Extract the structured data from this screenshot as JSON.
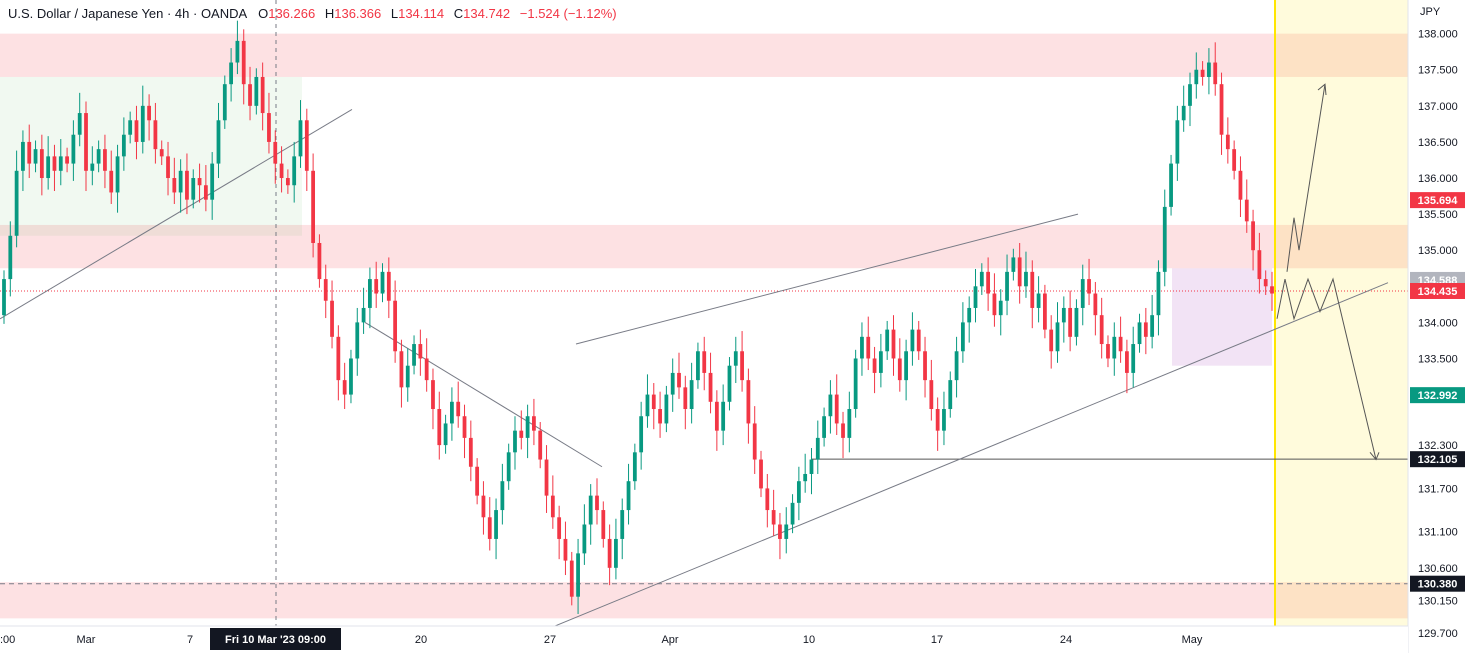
{
  "header": {
    "symbol_title": "U.S. Dollar / Japanese Yen · 4h · OANDA",
    "open_label": "O",
    "open_value": "136.266",
    "high_label": "H",
    "high_value": "136.366",
    "low_label": "L",
    "low_value": "134.114",
    "close_label": "C",
    "close_value": "134.742",
    "change_value": "−1.524 (−1.12%)"
  },
  "colors": {
    "up": "#089981",
    "down": "#f23645",
    "zone_red": "#f23645",
    "zone_green": "#4caf50",
    "zone_purple": "#9c27b0",
    "zone_yellow": "#ffeb3b",
    "trendline": "#787b86",
    "path": "#555555"
  },
  "chart_data": {
    "type": "candlestick",
    "title": "U.S. Dollar / Japanese Yen · 4h · OANDA",
    "currency_label": "JPY",
    "ylim": [
      129.6,
      138.3
    ],
    "y_ticks": [
      "138.000",
      "137.500",
      "137.000",
      "136.500",
      "136.000",
      "135.500",
      "135.000",
      "134.500",
      "134.000",
      "133.500",
      "132.300",
      "131.700",
      "131.100",
      "130.600",
      "130.150",
      "129.700"
    ],
    "x_ticks": [
      ":00",
      "Mar",
      "7",
      "20",
      "27",
      "Apr",
      "10",
      "17",
      "24",
      "May"
    ],
    "crosshair_date_label": "Fri 10 Mar '23  09:00",
    "price_tags": [
      {
        "value": 135.694,
        "label": "135.694",
        "color": "#f23645"
      },
      {
        "value": 134.588,
        "label": "134.588",
        "color": "#b2b5be"
      },
      {
        "value": 134.435,
        "label": "134.435",
        "color": "#f23645"
      },
      {
        "value": 132.992,
        "label": "132.992",
        "color": "#089981"
      },
      {
        "value": 132.105,
        "label": "132.105",
        "color": "#131722"
      },
      {
        "value": 130.38,
        "label": "130.380",
        "color": "#131722"
      }
    ],
    "candles": [
      [
        134.1,
        134.6
      ],
      [
        134.6,
        135.2
      ],
      [
        135.2,
        136.1
      ],
      [
        136.1,
        136.5
      ],
      [
        136.5,
        136.2
      ],
      [
        136.2,
        136.4
      ],
      [
        136.4,
        136.0
      ],
      [
        136.0,
        136.3
      ],
      [
        136.3,
        136.1
      ],
      [
        136.1,
        136.3
      ],
      [
        136.3,
        136.2
      ],
      [
        136.2,
        136.6
      ],
      [
        136.6,
        136.9
      ],
      [
        136.9,
        136.1
      ],
      [
        136.1,
        136.2
      ],
      [
        136.2,
        136.4
      ],
      [
        136.4,
        136.1
      ],
      [
        136.1,
        135.8
      ],
      [
        135.8,
        136.3
      ],
      [
        136.3,
        136.6
      ],
      [
        136.6,
        136.8
      ],
      [
        136.8,
        136.5
      ],
      [
        136.5,
        137.0
      ],
      [
        137.0,
        136.8
      ],
      [
        136.8,
        136.4
      ],
      [
        136.4,
        136.3
      ],
      [
        136.3,
        136.0
      ],
      [
        136.0,
        135.8
      ],
      [
        135.8,
        136.1
      ],
      [
        136.1,
        135.7
      ],
      [
        135.7,
        136.0
      ],
      [
        136.0,
        135.9
      ],
      [
        135.9,
        135.7
      ],
      [
        135.7,
        136.2
      ],
      [
        136.2,
        136.8
      ],
      [
        136.8,
        137.3
      ],
      [
        137.3,
        137.6
      ],
      [
        137.6,
        137.9
      ],
      [
        137.9,
        137.3
      ],
      [
        137.3,
        137.0
      ],
      [
        137.0,
        137.4
      ],
      [
        137.4,
        136.9
      ],
      [
        136.9,
        136.5
      ],
      [
        136.5,
        136.2
      ],
      [
        136.2,
        136.0
      ],
      [
        136.0,
        135.9
      ],
      [
        135.9,
        136.3
      ],
      [
        136.3,
        136.8
      ],
      [
        136.8,
        136.1
      ],
      [
        136.1,
        135.1
      ],
      [
        135.1,
        134.6
      ],
      [
        134.6,
        134.3
      ],
      [
        134.3,
        133.8
      ],
      [
        133.8,
        133.2
      ],
      [
        133.2,
        133.0
      ],
      [
        133.0,
        133.5
      ],
      [
        133.5,
        134.0
      ],
      [
        134.0,
        134.2
      ],
      [
        134.2,
        134.6
      ],
      [
        134.6,
        134.4
      ],
      [
        134.4,
        134.7
      ],
      [
        134.7,
        134.3
      ],
      [
        134.3,
        133.6
      ],
      [
        133.6,
        133.1
      ],
      [
        133.1,
        133.4
      ],
      [
        133.4,
        133.7
      ],
      [
        133.7,
        133.5
      ],
      [
        133.5,
        133.2
      ],
      [
        133.2,
        132.8
      ],
      [
        132.8,
        132.3
      ],
      [
        132.3,
        132.6
      ],
      [
        132.6,
        132.9
      ],
      [
        132.9,
        132.7
      ],
      [
        132.7,
        132.4
      ],
      [
        132.4,
        132.0
      ],
      [
        132.0,
        131.6
      ],
      [
        131.6,
        131.3
      ],
      [
        131.3,
        131.0
      ],
      [
        131.0,
        131.4
      ],
      [
        131.4,
        131.8
      ],
      [
        131.8,
        132.2
      ],
      [
        132.2,
        132.5
      ],
      [
        132.5,
        132.4
      ],
      [
        132.4,
        132.7
      ],
      [
        132.7,
        132.5
      ],
      [
        132.5,
        132.1
      ],
      [
        132.1,
        131.6
      ],
      [
        131.6,
        131.3
      ],
      [
        131.3,
        131.0
      ],
      [
        131.0,
        130.7
      ],
      [
        130.7,
        130.2
      ],
      [
        130.2,
        130.8
      ],
      [
        130.8,
        131.2
      ],
      [
        131.2,
        131.6
      ],
      [
        131.6,
        131.4
      ],
      [
        131.4,
        131.0
      ],
      [
        131.0,
        130.6
      ],
      [
        130.6,
        131.0
      ],
      [
        131.0,
        131.4
      ],
      [
        131.4,
        131.8
      ],
      [
        131.8,
        132.2
      ],
      [
        132.2,
        132.7
      ],
      [
        132.7,
        133.0
      ],
      [
        133.0,
        132.8
      ],
      [
        132.8,
        132.6
      ],
      [
        132.6,
        133.0
      ],
      [
        133.0,
        133.3
      ],
      [
        133.3,
        133.1
      ],
      [
        133.1,
        132.8
      ],
      [
        132.8,
        133.2
      ],
      [
        133.2,
        133.6
      ],
      [
        133.6,
        133.3
      ],
      [
        133.3,
        132.9
      ],
      [
        132.9,
        132.5
      ],
      [
        132.5,
        132.9
      ],
      [
        132.9,
        133.4
      ],
      [
        133.4,
        133.6
      ],
      [
        133.6,
        133.2
      ],
      [
        133.2,
        132.6
      ],
      [
        132.6,
        132.1
      ],
      [
        132.1,
        131.7
      ],
      [
        131.7,
        131.4
      ],
      [
        131.4,
        131.2
      ],
      [
        131.2,
        131.0
      ],
      [
        131.0,
        131.2
      ],
      [
        131.2,
        131.5
      ],
      [
        131.5,
        131.8
      ],
      [
        131.8,
        131.9
      ],
      [
        131.9,
        132.1
      ],
      [
        132.1,
        132.4
      ],
      [
        132.4,
        132.7
      ],
      [
        132.7,
        133.0
      ],
      [
        133.0,
        132.6
      ],
      [
        132.6,
        132.4
      ],
      [
        132.4,
        132.8
      ],
      [
        132.8,
        133.5
      ],
      [
        133.5,
        133.8
      ],
      [
        133.8,
        133.5
      ],
      [
        133.5,
        133.3
      ],
      [
        133.3,
        133.6
      ],
      [
        133.6,
        133.9
      ],
      [
        133.9,
        133.5
      ],
      [
        133.5,
        133.2
      ],
      [
        133.2,
        133.6
      ],
      [
        133.6,
        133.9
      ],
      [
        133.9,
        133.6
      ],
      [
        133.6,
        133.2
      ],
      [
        133.2,
        132.8
      ],
      [
        132.8,
        132.5
      ],
      [
        132.5,
        132.8
      ],
      [
        132.8,
        133.2
      ],
      [
        133.2,
        133.6
      ],
      [
        133.6,
        134.0
      ],
      [
        134.0,
        134.2
      ],
      [
        134.2,
        134.5
      ],
      [
        134.5,
        134.7
      ],
      [
        134.7,
        134.4
      ],
      [
        134.4,
        134.1
      ],
      [
        134.1,
        134.3
      ],
      [
        134.3,
        134.7
      ],
      [
        134.7,
        134.9
      ],
      [
        134.9,
        134.5
      ],
      [
        134.5,
        134.7
      ],
      [
        134.7,
        134.2
      ],
      [
        134.2,
        134.4
      ],
      [
        134.4,
        133.9
      ],
      [
        133.9,
        133.6
      ],
      [
        133.6,
        134.0
      ],
      [
        134.0,
        134.2
      ],
      [
        134.2,
        133.8
      ],
      [
        133.8,
        134.2
      ],
      [
        134.2,
        134.6
      ],
      [
        134.6,
        134.4
      ],
      [
        134.4,
        134.1
      ],
      [
        134.1,
        133.7
      ],
      [
        133.7,
        133.5
      ],
      [
        133.5,
        133.8
      ],
      [
        133.8,
        133.6
      ],
      [
        133.6,
        133.3
      ],
      [
        133.3,
        133.7
      ],
      [
        133.7,
        134.0
      ],
      [
        134.0,
        133.8
      ],
      [
        133.8,
        134.1
      ],
      [
        134.1,
        134.7
      ],
      [
        134.7,
        135.6
      ],
      [
        135.6,
        136.2
      ],
      [
        136.2,
        136.8
      ],
      [
        136.8,
        137.0
      ],
      [
        137.0,
        137.3
      ],
      [
        137.3,
        137.5
      ],
      [
        137.5,
        137.4
      ],
      [
        137.4,
        137.6
      ],
      [
        137.6,
        137.3
      ],
      [
        137.3,
        136.6
      ],
      [
        136.6,
        136.4
      ],
      [
        136.4,
        136.1
      ],
      [
        136.1,
        135.7
      ],
      [
        135.7,
        135.4
      ],
      [
        135.4,
        135.0
      ],
      [
        135.0,
        134.6
      ],
      [
        134.6,
        134.5
      ],
      [
        134.5,
        134.4
      ]
    ]
  }
}
